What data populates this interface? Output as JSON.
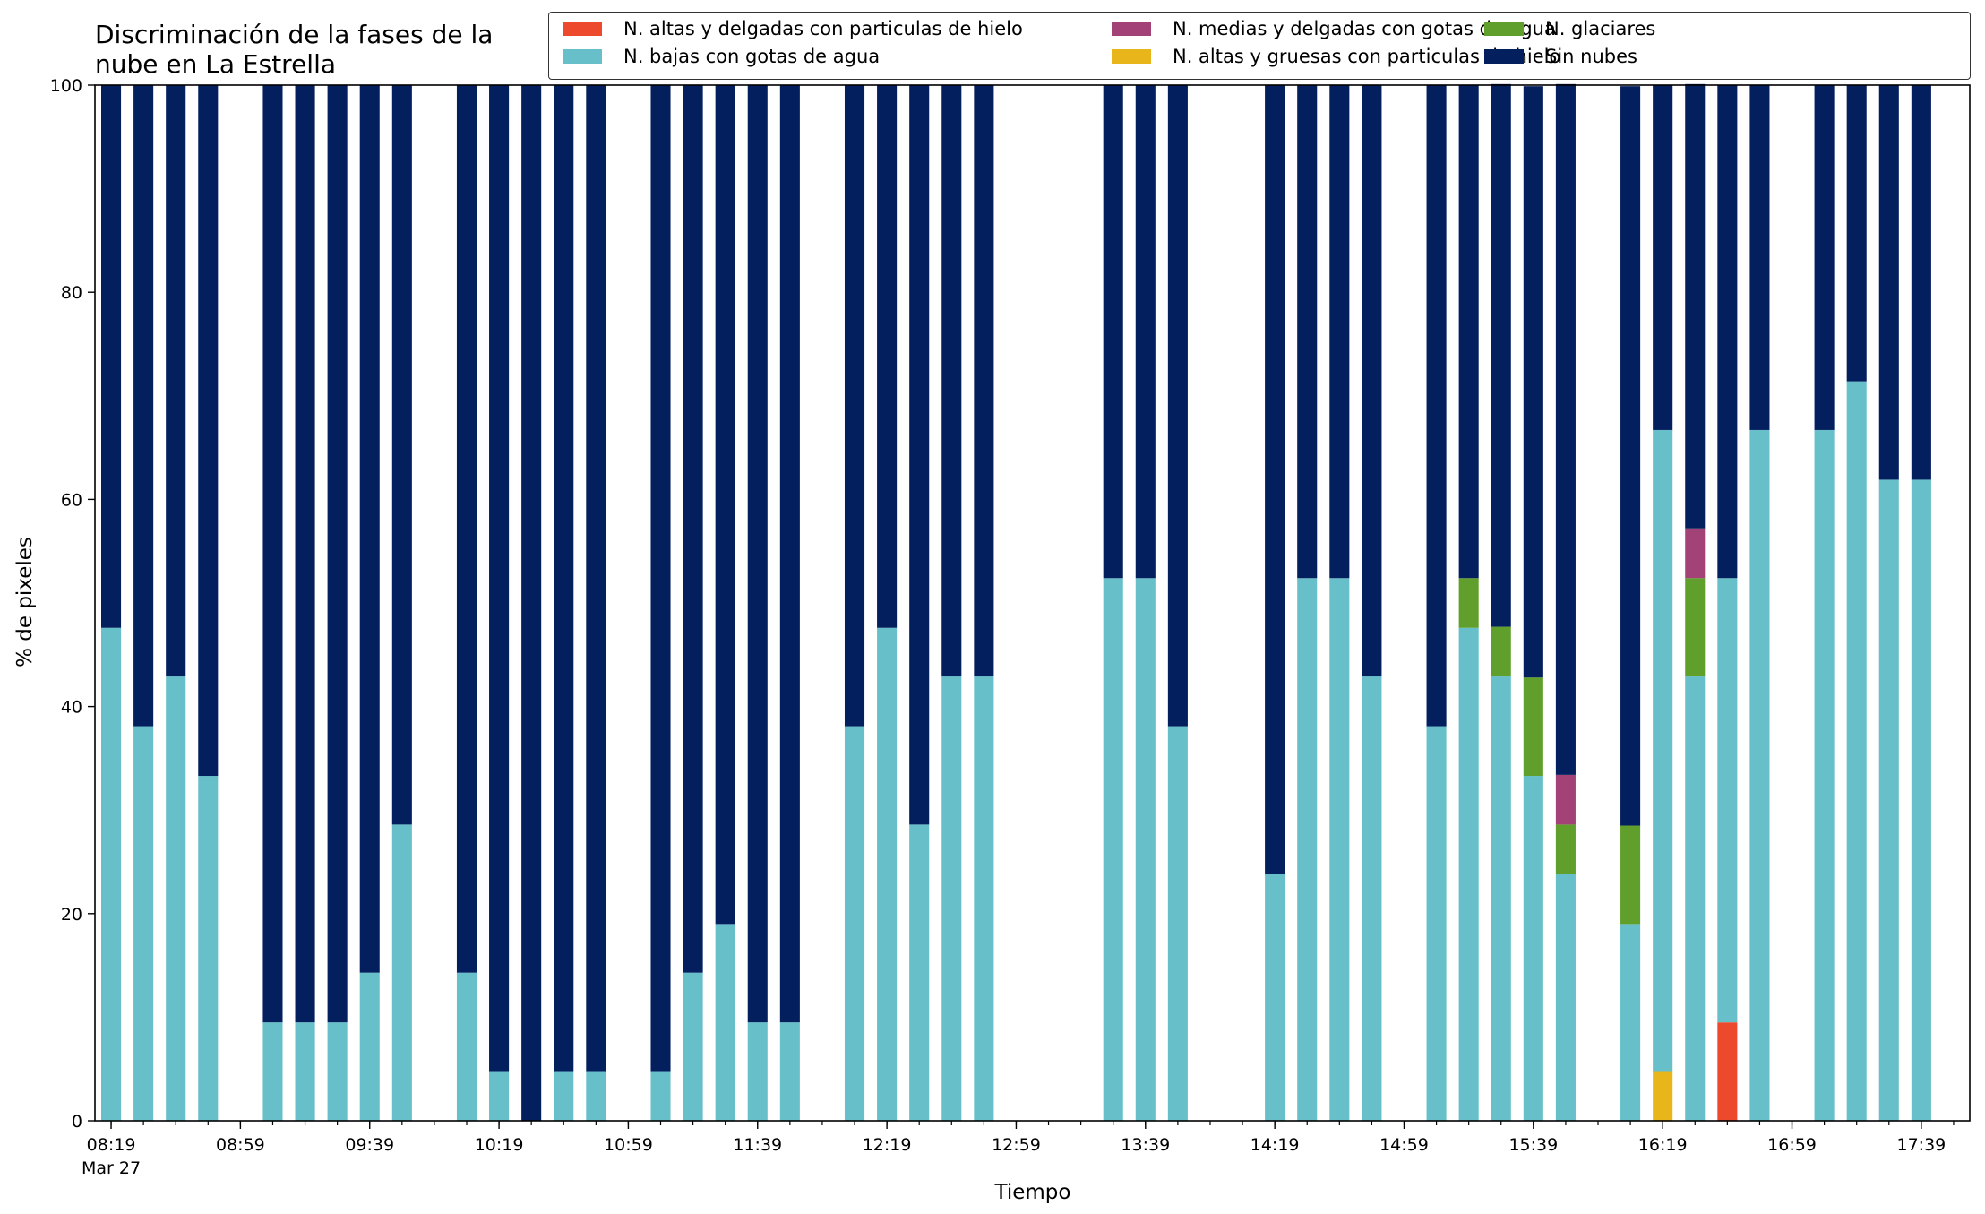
{
  "chart_data": {
    "type": "bar",
    "stacked": true,
    "title": "Discriminación de la fases de la nube en La Estrella",
    "xlabel": "Tiempo",
    "ylabel": "% de pixeles",
    "ylim": [
      0,
      100
    ],
    "yticks": [
      0,
      20,
      40,
      60,
      80,
      100
    ],
    "date_label": "Mar 27",
    "xlim": [
      "08:14",
      "17:54"
    ],
    "bar_width_min": 3,
    "xticks_major": [
      "08:19",
      "08:59",
      "09:39",
      "10:19",
      "10:59",
      "11:39",
      "12:19",
      "12:59",
      "13:39",
      "14:19",
      "14:59",
      "15:39",
      "16:19",
      "16:59",
      "17:39"
    ],
    "grid": false,
    "legend_position": "top-right",
    "series": [
      {
        "name": "N. altas y delgadas con particulas de hielo",
        "color": "#ed4a2d"
      },
      {
        "name": "N. altas y gruesas con particulas de hielo",
        "color": "#e8b51b"
      },
      {
        "name": "N. bajas con gotas de agua",
        "color": "#67bfca"
      },
      {
        "name": "N. glaciares",
        "color": "#609f2b"
      },
      {
        "name": "N. medias y delgadas con gotas de agua",
        "color": "#a34276"
      },
      {
        "name": "Sin nubes",
        "color": "#041f5e"
      }
    ],
    "legend_order": [
      0,
      2,
      4,
      1,
      3,
      5
    ],
    "bars": [
      {
        "time": "08:19",
        "values": [
          0,
          0,
          47.6,
          0,
          0,
          52.4
        ]
      },
      {
        "time": "08:29",
        "values": [
          0,
          0,
          38.1,
          0,
          0,
          61.9
        ]
      },
      {
        "time": "08:39",
        "values": [
          0,
          0,
          42.9,
          0,
          0,
          57.1
        ]
      },
      {
        "time": "08:49",
        "values": [
          0,
          0,
          33.3,
          0,
          0,
          66.7
        ]
      },
      {
        "time": "09:09",
        "values": [
          0,
          0,
          9.5,
          0,
          0,
          90.5
        ]
      },
      {
        "time": "09:19",
        "values": [
          0,
          0,
          9.5,
          0,
          0,
          90.5
        ]
      },
      {
        "time": "09:29",
        "values": [
          0,
          0,
          9.5,
          0,
          0,
          90.5
        ]
      },
      {
        "time": "09:39",
        "values": [
          0,
          0,
          14.3,
          0,
          0,
          85.7
        ]
      },
      {
        "time": "09:49",
        "values": [
          0,
          0,
          28.6,
          0,
          0,
          71.4
        ]
      },
      {
        "time": "10:09",
        "values": [
          0,
          0,
          14.3,
          0,
          0,
          85.7
        ]
      },
      {
        "time": "10:19",
        "values": [
          0,
          0,
          4.8,
          0,
          0,
          95.2
        ]
      },
      {
        "time": "10:29",
        "values": [
          0,
          0,
          0,
          0,
          0,
          100
        ]
      },
      {
        "time": "10:39",
        "values": [
          0,
          0,
          4.8,
          0,
          0,
          95.2
        ]
      },
      {
        "time": "10:49",
        "values": [
          0,
          0,
          4.8,
          0,
          0,
          95.2
        ]
      },
      {
        "time": "11:09",
        "values": [
          0,
          0,
          4.8,
          0,
          0,
          95.2
        ]
      },
      {
        "time": "11:19",
        "values": [
          0,
          0,
          14.3,
          0,
          0,
          85.7
        ]
      },
      {
        "time": "11:29",
        "values": [
          0,
          0,
          19.0,
          0,
          0,
          81.0
        ]
      },
      {
        "time": "11:39",
        "values": [
          0,
          0,
          9.5,
          0,
          0,
          90.5
        ]
      },
      {
        "time": "11:49",
        "values": [
          0,
          0,
          9.5,
          0,
          0,
          90.5
        ]
      },
      {
        "time": "12:09",
        "values": [
          0,
          0,
          38.1,
          0,
          0,
          61.9
        ]
      },
      {
        "time": "12:19",
        "values": [
          0,
          0,
          47.6,
          0,
          0,
          52.4
        ]
      },
      {
        "time": "12:29",
        "values": [
          0,
          0,
          28.6,
          0,
          0,
          71.4
        ]
      },
      {
        "time": "12:39",
        "values": [
          0,
          0,
          42.9,
          0,
          0,
          57.1
        ]
      },
      {
        "time": "12:49",
        "values": [
          0,
          0,
          42.9,
          0,
          0,
          57.1
        ]
      },
      {
        "time": "13:29",
        "values": [
          0,
          0,
          52.4,
          0,
          0,
          47.6
        ]
      },
      {
        "time": "13:39",
        "values": [
          0,
          0,
          52.4,
          0,
          0,
          47.6
        ]
      },
      {
        "time": "13:49",
        "values": [
          0,
          0,
          38.1,
          0,
          0,
          61.9
        ]
      },
      {
        "time": "14:19",
        "values": [
          0,
          0,
          23.8,
          0,
          0,
          76.2
        ]
      },
      {
        "time": "14:29",
        "values": [
          0,
          0,
          52.4,
          0,
          0,
          47.6
        ]
      },
      {
        "time": "14:39",
        "values": [
          0,
          0,
          52.4,
          0,
          0,
          47.6
        ]
      },
      {
        "time": "14:49",
        "values": [
          0,
          0,
          42.9,
          0,
          0,
          57.1
        ]
      },
      {
        "time": "15:09",
        "values": [
          0,
          0,
          38.1,
          0,
          0,
          61.9
        ]
      },
      {
        "time": "15:19",
        "values": [
          0,
          0,
          47.6,
          4.8,
          0,
          47.6
        ]
      },
      {
        "time": "15:29",
        "values": [
          0,
          0,
          42.9,
          4.8,
          0,
          52.4
        ]
      },
      {
        "time": "15:39",
        "values": [
          0,
          0,
          33.3,
          9.5,
          0,
          57.1
        ]
      },
      {
        "time": "15:49",
        "values": [
          0,
          0,
          23.8,
          4.8,
          4.8,
          66.7
        ]
      },
      {
        "time": "16:09",
        "values": [
          0,
          0,
          19.0,
          9.5,
          0,
          71.4
        ]
      },
      {
        "time": "16:19",
        "values": [
          0,
          4.8,
          61.9,
          0,
          0,
          33.3
        ]
      },
      {
        "time": "16:29",
        "values": [
          0,
          0,
          42.9,
          9.5,
          4.8,
          42.9
        ]
      },
      {
        "time": "16:39",
        "values": [
          9.5,
          0,
          42.9,
          0,
          0,
          47.6
        ]
      },
      {
        "time": "16:49",
        "values": [
          0,
          0,
          66.7,
          0,
          0,
          33.3
        ]
      },
      {
        "time": "17:09",
        "values": [
          0,
          0,
          66.7,
          0,
          0,
          33.3
        ]
      },
      {
        "time": "17:19",
        "values": [
          0,
          0,
          71.4,
          0,
          0,
          28.6
        ]
      },
      {
        "time": "17:29",
        "values": [
          0,
          0,
          61.9,
          0,
          0,
          38.1
        ]
      },
      {
        "time": "17:39",
        "values": [
          0,
          0,
          61.9,
          0,
          0,
          38.1
        ]
      }
    ]
  }
}
